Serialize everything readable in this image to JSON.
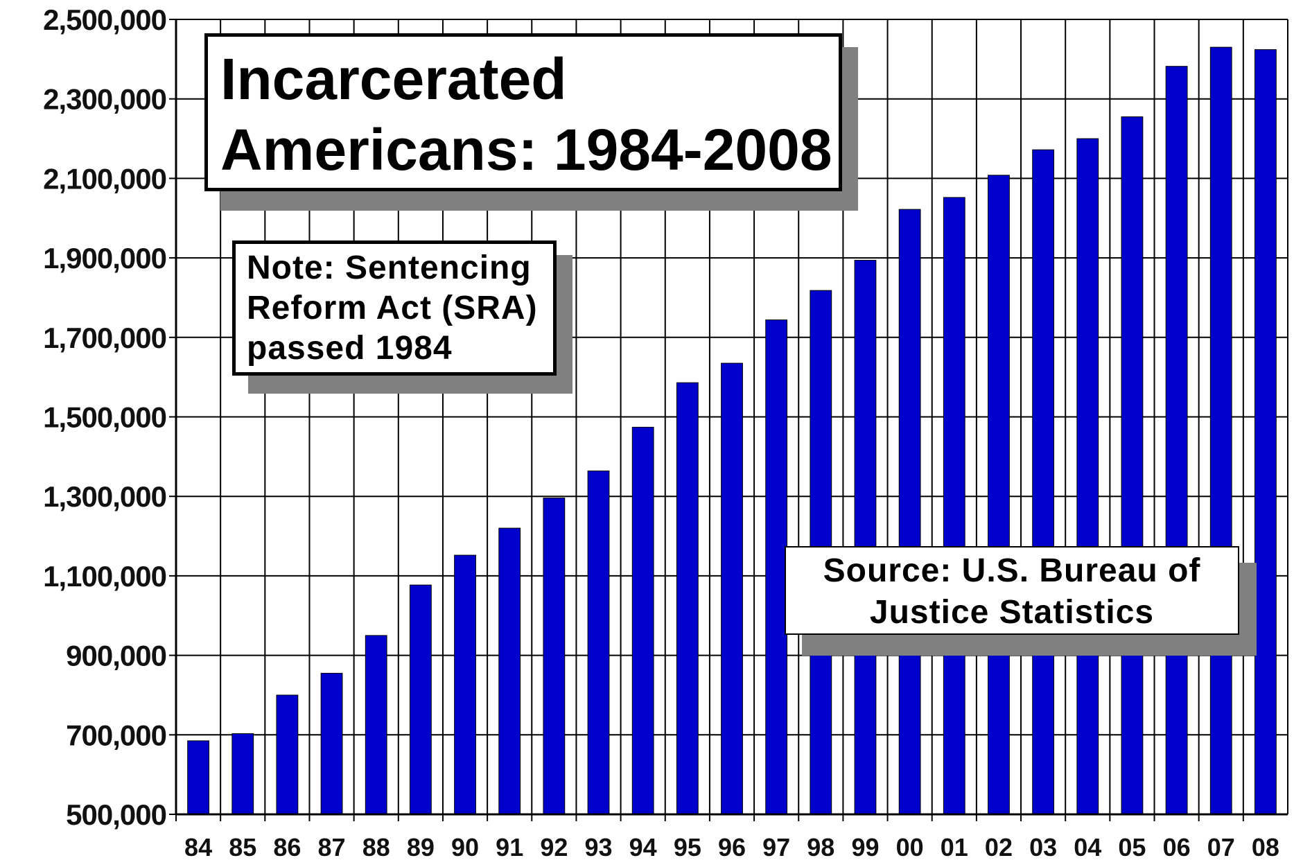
{
  "chart_data": {
    "type": "bar",
    "title": "Incarcerated Americans: 1984-2008",
    "title_lines": [
      "Incarcerated",
      "Americans: 1984-2008"
    ],
    "note_lines": [
      "Note: Sentencing",
      "Reform Act (SRA)",
      "passed 1984"
    ],
    "source_lines": [
      "Source: U.S. Bureau of",
      "Justice Statistics"
    ],
    "categories": [
      "84",
      "85",
      "86",
      "87",
      "88",
      "89",
      "90",
      "91",
      "92",
      "93",
      "94",
      "95",
      "96",
      "97",
      "98",
      "99",
      "00",
      "01",
      "02",
      "03",
      "04",
      "05",
      "06",
      "07",
      "08"
    ],
    "values": [
      685000,
      703000,
      800000,
      855000,
      950000,
      1077000,
      1152000,
      1220000,
      1296000,
      1364000,
      1474000,
      1586000,
      1635000,
      1744000,
      1818000,
      1894000,
      2022000,
      2052000,
      2108000,
      2172000,
      2200000,
      2255000,
      2382000,
      2430000,
      2424000
    ],
    "ylim": [
      500000,
      2500000
    ],
    "y_ticks": [
      "500,000",
      "700,000",
      "900,000",
      "1,100,000",
      "1,300,000",
      "1,500,000",
      "1,700,000",
      "1,900,000",
      "2,100,000",
      "2,300,000",
      "2,500,000"
    ],
    "y_tick_values": [
      500000,
      700000,
      900000,
      1100000,
      1300000,
      1500000,
      1700000,
      1900000,
      2100000,
      2300000,
      2500000
    ],
    "xlabel": "",
    "ylabel": "",
    "grid": true,
    "colors": {
      "bar": "#0000cc",
      "grid": "#000000",
      "shadow": "#808080"
    }
  }
}
